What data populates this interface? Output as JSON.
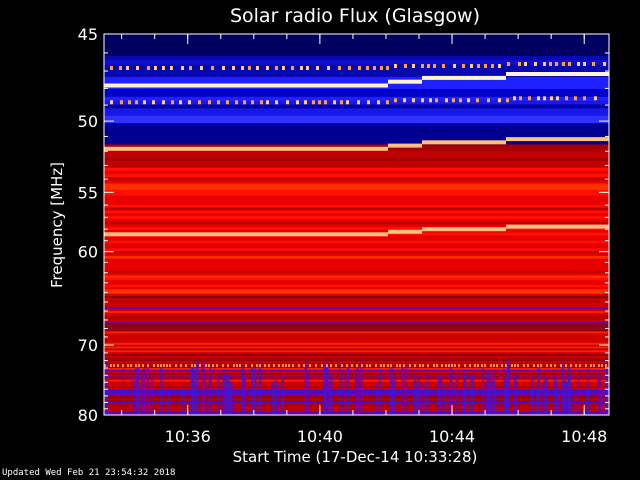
{
  "chart_data": {
    "type": "heatmap",
    "title": "Solar radio Flux (Glasgow)",
    "xlabel": "Start Time (17-Dec-14 10:33:28)",
    "ylabel": "Frequency [MHz]",
    "x_ticks": [
      "10:36",
      "10:40",
      "10:44",
      "10:48"
    ],
    "y_ticks": [
      "45",
      "50",
      "55",
      "60",
      "70",
      "80"
    ],
    "x_range": [
      "10:33:28",
      "10:48:45"
    ],
    "y_range": [
      45,
      80
    ],
    "y_scale": "reciprocal",
    "colormap": [
      "#000080",
      "#1a1aff",
      "#8000c0",
      "#b00000",
      "#ff1a00",
      "#ff5a00",
      "#ffb060",
      "#fff0c0"
    ],
    "bright_lines_mhz": [
      47.8,
      51.8,
      58.4
    ]
  },
  "footer": {
    "updated": "Updated Wed Feb 21 23:54:32 2018"
  },
  "colors": {
    "background": "#000000",
    "axis": "#ffffff"
  }
}
